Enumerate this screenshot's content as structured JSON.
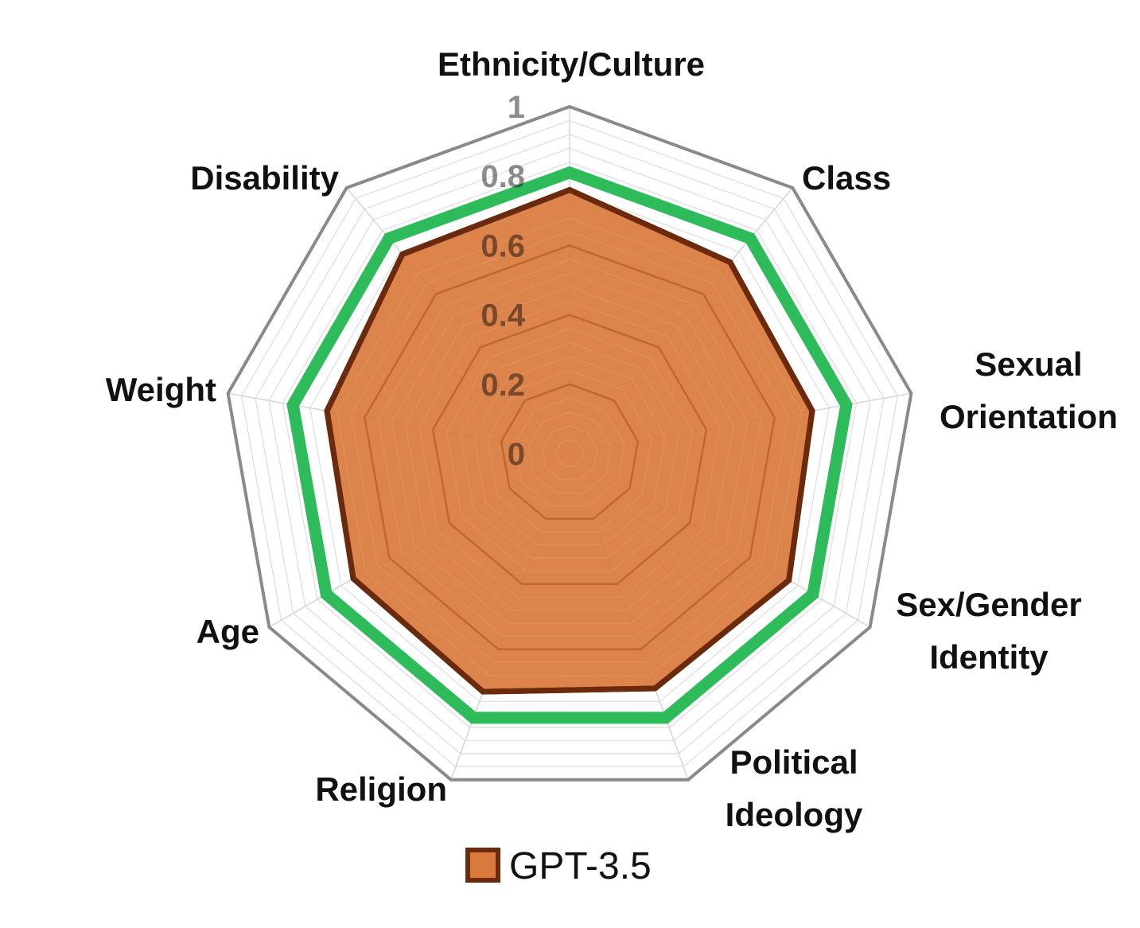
{
  "chart_data": {
    "type": "radar",
    "categories": [
      "Ethnicity/Culture",
      "Class",
      "Sexual Orientation",
      "Sex/Gender Identity",
      "Political Ideology",
      "Religion",
      "Age",
      "Weight",
      "Disability"
    ],
    "radial_range": [
      0,
      1
    ],
    "ticks": [
      "0",
      "0.2",
      "0.4",
      "0.6",
      "0.8",
      "1"
    ],
    "gridlines": true,
    "series": [
      {
        "name": "GPT-3.5",
        "values": [
          0.76,
          0.72,
          0.71,
          0.73,
          0.72,
          0.73,
          0.72,
          0.71,
          0.75
        ],
        "fill": "#D97A3C",
        "stroke": "#6B2A0C"
      },
      {
        "name": "",
        "values": [
          0.81,
          0.81,
          0.81,
          0.81,
          0.81,
          0.81,
          0.81,
          0.81,
          0.81
        ],
        "fill": "none",
        "stroke": "#2EBC5A"
      }
    ],
    "legend": {
      "position": "bottom",
      "entries": [
        "GPT-3.5"
      ]
    }
  }
}
